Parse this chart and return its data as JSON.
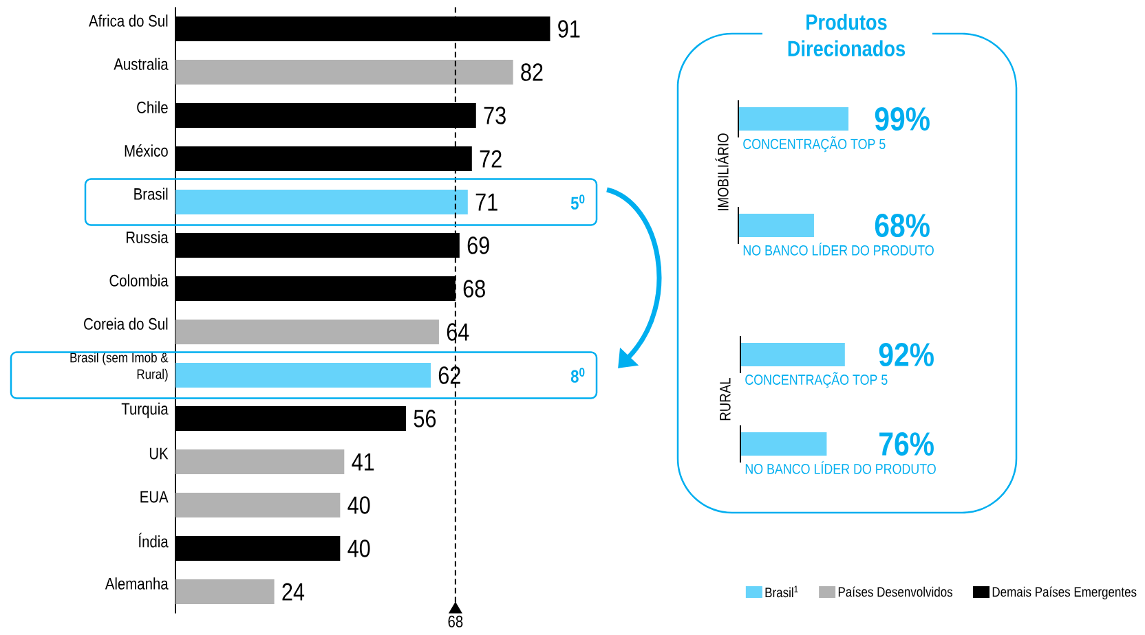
{
  "chart_data": [
    {
      "type": "bar",
      "orientation": "horizontal",
      "categories": [
        "Africa do Sul",
        "Australia",
        "Chile",
        "México",
        "Brasil",
        "Russia",
        "Colombia",
        "Coreia do Sul",
        "Brasil (sem Imob & Rural)",
        "Turquia",
        "UK",
        "EUA",
        "Índia",
        "Alemanha"
      ],
      "series": [
        {
          "name": "Brasil$^{1}$",
          "color": "#66d3fa",
          "values": [
            null,
            null,
            null,
            null,
            71,
            null,
            null,
            null,
            62,
            null,
            null,
            null,
            null,
            null
          ]
        },
        {
          "name": "Países Desenvolvidos",
          "color": "#b2b2b2",
          "values": [
            null,
            82,
            null,
            null,
            null,
            null,
            null,
            64,
            null,
            null,
            41,
            40,
            null,
            24
          ]
        },
        {
          "name": "Demais Países Emergentes",
          "color": "#000000",
          "values": [
            91,
            null,
            73,
            72,
            null,
            69,
            68,
            null,
            null,
            56,
            null,
            null,
            40,
            null
          ]
        }
      ],
      "tick_labels": "y",
      "data_labels": true,
      "legend": "bottom right",
      "ref_lines": [
        {
          "axis": "x",
          "value": 68,
          "label": "68",
          "line_style": "dashed",
          "color": "#000000"
        }
      ],
      "annotations": [
        "5$^{0}$",
        "8$^{0}$"
      ]
    },
    {
      "type": "bar",
      "orientation": "horizontal",
      "title": "Produtos Direcionados",
      "ylabel": "IMOBILIÁRIO",
      "categories": [
        "CONCENTRAÇÃO TOP 5",
        "NO BANCO LÍDER DO PRODUTO"
      ],
      "values": [
        99,
        68
      ],
      "value_labels": [
        "99%",
        "68%"
      ],
      "color": "#66d3fa",
      "tick_labels": "y"
    },
    {
      "type": "bar",
      "orientation": "horizontal",
      "ylabel": "RURAL",
      "categories": [
        "CONCENTRAÇÃO TOP 5",
        "NO BANCO LÍDER DO PRODUTO"
      ],
      "values": [
        92,
        76
      ],
      "value_labels": [
        "92%",
        "76%"
      ],
      "color": "#66d3fa",
      "tick_labels": "y"
    }
  ]
}
